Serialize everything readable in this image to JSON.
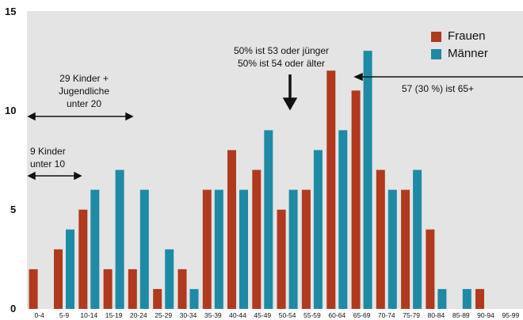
{
  "chart_data": {
    "type": "bar",
    "categories": [
      "0-4",
      "5-9",
      "10-14",
      "15-19",
      "20-24",
      "25-29",
      "30-34",
      "35-39",
      "40-44",
      "45-49",
      "50-54",
      "55-59",
      "60-64",
      "65-69",
      "70-74",
      "75-79",
      "80-84",
      "85-89",
      "90-94",
      "95-99"
    ],
    "series": [
      {
        "name": "Frauen",
        "color": "#b03a1e",
        "values": [
          2,
          3,
          5,
          2,
          2,
          1,
          2,
          6,
          8,
          7,
          5,
          6,
          12,
          11,
          7,
          6,
          4,
          0,
          1,
          0
        ]
      },
      {
        "name": "Männer",
        "color": "#1e8aa6",
        "values": [
          0,
          4,
          6,
          7,
          6,
          3,
          1,
          6,
          6,
          9,
          6,
          8,
          9,
          13,
          6,
          7,
          1,
          1,
          0,
          0
        ]
      }
    ],
    "title": "",
    "xlabel": "",
    "ylabel": "",
    "ylim": [
      0,
      15
    ],
    "yticks": [
      "0",
      "5",
      "10",
      "15"
    ],
    "grid": false,
    "legend_position": "top-right",
    "plot_background": "#e4e4e4",
    "annotations": {
      "median": "50% ist 53 oder jünger\n50% ist 54 oder älter",
      "over65": "57 (30 %) ist 65+",
      "under20": "29 Kinder +\nJugendliche\nunter 20",
      "under10": "9 Kinder\nunter 10"
    }
  }
}
